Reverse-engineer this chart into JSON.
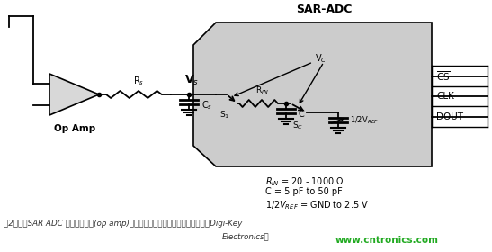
{
  "title": "SAR-ADC",
  "bg_color": "#ffffff",
  "sar_bg_color": "#cccccc",
  "caption_line1": "图2：驱动SAR ADC 的运算放大器(op amp)，带有输出稳定滤波器。（图片来源：Digi-Key",
  "caption_line2": "Electronics）",
  "watermark": "www.cntronics.com",
  "label_opamp": "Op Amp",
  "label_rs": "R$_s$",
  "label_vs": "V$_s$",
  "label_cs": "C$_s$",
  "label_rin": "R$_{IN}$",
  "label_s1": "S$_1$",
  "label_sc": "S$_C$",
  "label_c": "C",
  "label_vc": "V$_C$",
  "label_vref": "1/2V$_{REF}$",
  "label_clk": "CLK",
  "label_dout": "DOUT"
}
